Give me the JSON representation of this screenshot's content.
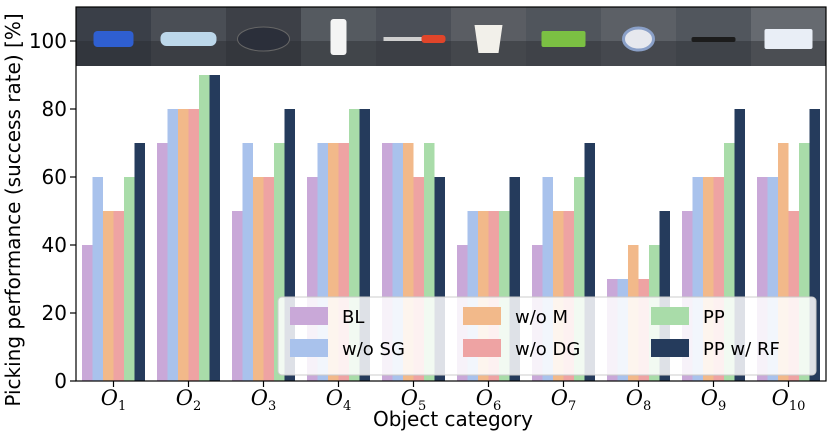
{
  "chart_data": {
    "type": "bar",
    "ylabel": "Picking performance (success rate) [%]",
    "xlabel": "Object category",
    "ylim": [
      0,
      110
    ],
    "yticks": [
      0,
      20,
      40,
      60,
      80,
      100
    ],
    "legend_position": "bottom-right",
    "categories": [
      {
        "base": "O",
        "sub": "1"
      },
      {
        "base": "O",
        "sub": "2"
      },
      {
        "base": "O",
        "sub": "3"
      },
      {
        "base": "O",
        "sub": "4"
      },
      {
        "base": "O",
        "sub": "5"
      },
      {
        "base": "O",
        "sub": "6"
      },
      {
        "base": "O",
        "sub": "7"
      },
      {
        "base": "O",
        "sub": "8"
      },
      {
        "base": "O",
        "sub": "9"
      },
      {
        "base": "O",
        "sub": "10"
      }
    ],
    "object_images": [
      {
        "name": "blue-stapler",
        "icon": "stapler-photo"
      },
      {
        "name": "plastic-bottle",
        "icon": "bottle-photo"
      },
      {
        "name": "game-controller",
        "icon": "controller-photo"
      },
      {
        "name": "spray-bottle",
        "icon": "spray-photo"
      },
      {
        "name": "screwdriver",
        "icon": "screwdriver-photo"
      },
      {
        "name": "paper-cup",
        "icon": "cup-photo"
      },
      {
        "name": "green-box",
        "icon": "box-photo"
      },
      {
        "name": "tape-roll",
        "icon": "tape-photo"
      },
      {
        "name": "marker-pen",
        "icon": "marker-photo"
      },
      {
        "name": "tissue-box",
        "icon": "tissue-photo"
      }
    ],
    "series": [
      {
        "name": "BL",
        "color": "#c9a8d8",
        "values": [
          40,
          70,
          50,
          60,
          70,
          40,
          40,
          30,
          50,
          60
        ]
      },
      {
        "name": "w/o SG",
        "color": "#a9c2ec",
        "values": [
          60,
          80,
          70,
          70,
          70,
          50,
          60,
          30,
          60,
          60
        ]
      },
      {
        "name": "w/o M",
        "color": "#f2b98a",
        "values": [
          50,
          80,
          60,
          70,
          70,
          50,
          50,
          40,
          60,
          70
        ]
      },
      {
        "name": "w/o DG",
        "color": "#eea3a3",
        "values": [
          50,
          80,
          60,
          70,
          60,
          50,
          50,
          30,
          60,
          50
        ]
      },
      {
        "name": "PP",
        "color": "#a9dca9",
        "values": [
          60,
          90,
          70,
          80,
          70,
          50,
          60,
          40,
          70,
          70
        ]
      },
      {
        "name": "PP w/ RF",
        "color": "#253b5c",
        "values": [
          70,
          90,
          80,
          80,
          60,
          60,
          70,
          50,
          80,
          80
        ]
      }
    ]
  }
}
